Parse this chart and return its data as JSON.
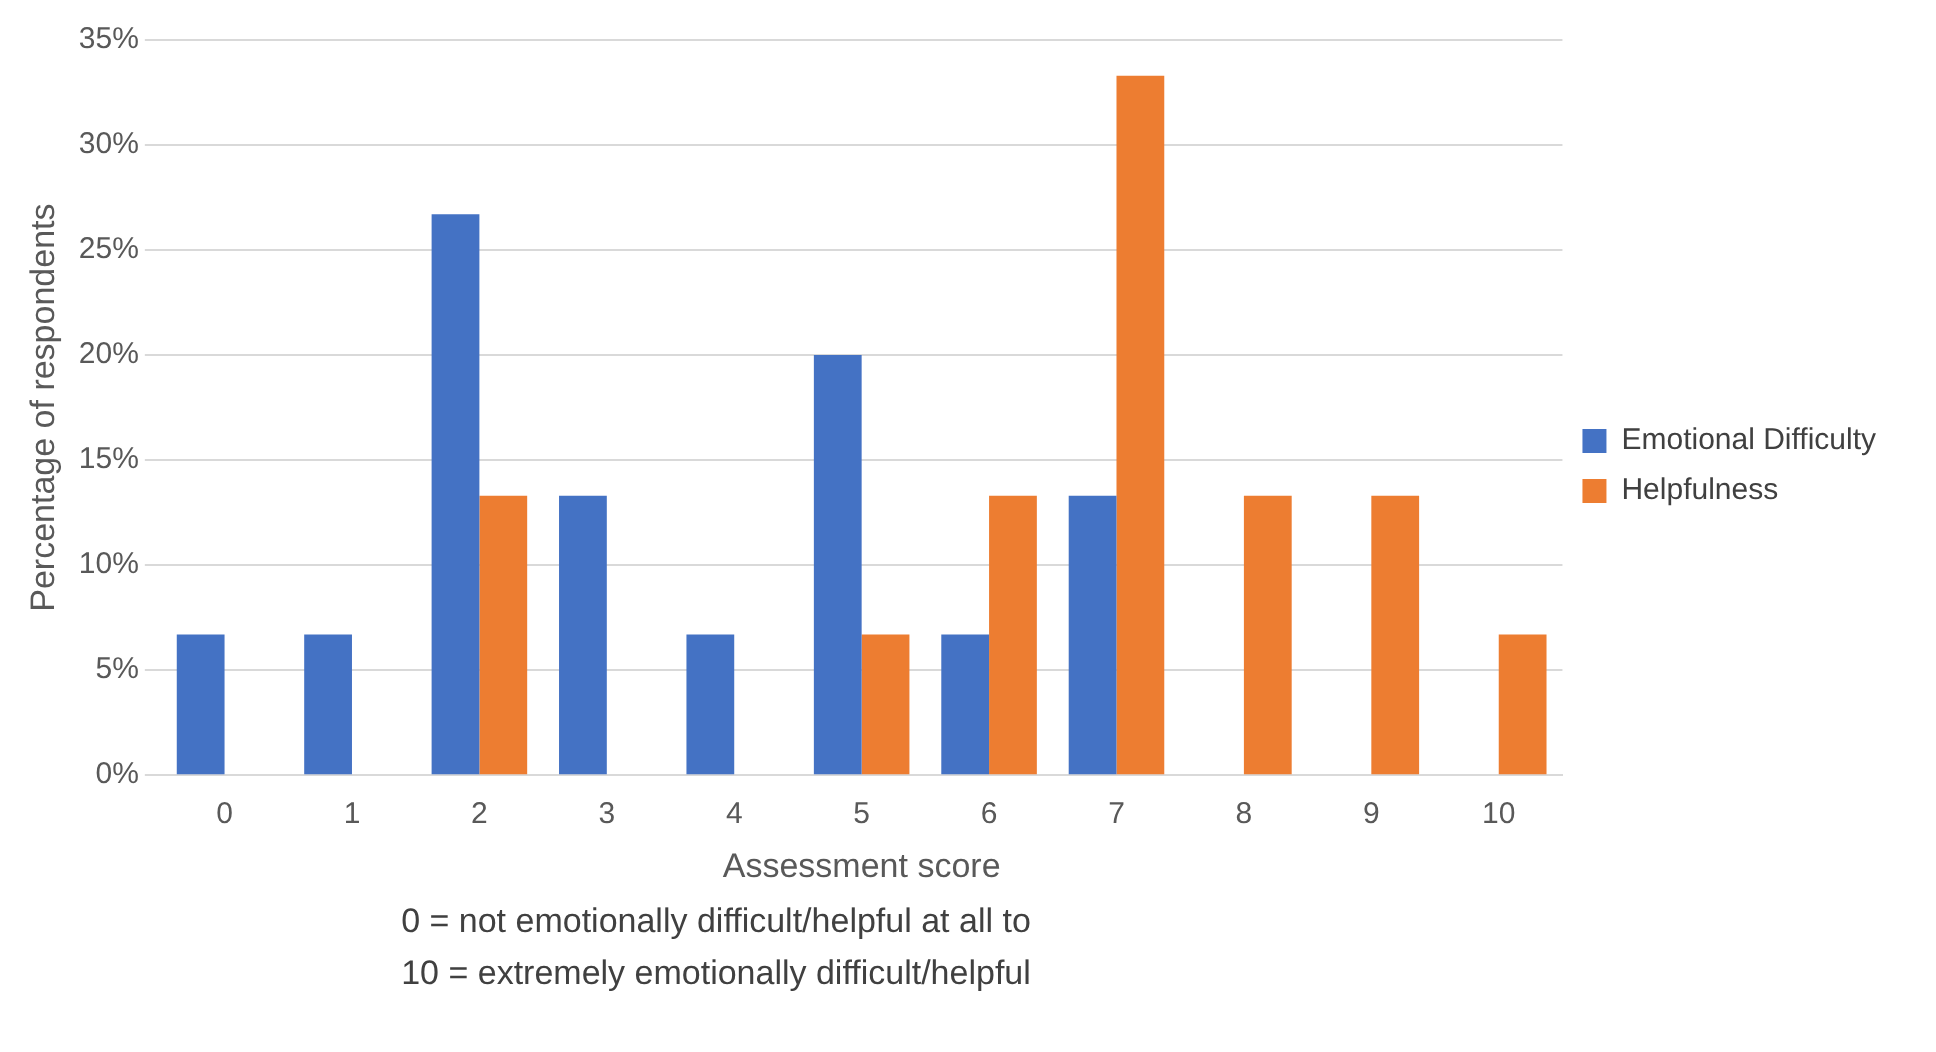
{
  "chart_data": {
    "type": "bar",
    "xlabel": "Assessment score",
    "ylabel": "Percentage of respondents",
    "categories": [
      "0",
      "1",
      "2",
      "3",
      "4",
      "5",
      "6",
      "7",
      "8",
      "9",
      "10"
    ],
    "series": [
      {
        "name": "Emotional Difficulty",
        "color": "#4472c4",
        "values": [
          6.7,
          6.7,
          26.7,
          13.3,
          6.7,
          20,
          6.7,
          13.3,
          0,
          0,
          0
        ]
      },
      {
        "name": "Helpfulness",
        "color": "#ed7d31",
        "values": [
          0,
          0,
          13.3,
          0,
          0,
          6.7,
          13.3,
          33.3,
          13.3,
          13.3,
          6.7
        ]
      }
    ],
    "ylim": [
      0,
      35
    ],
    "yticks": [
      {
        "value": 0,
        "label": "0%"
      },
      {
        "value": 5,
        "label": "5%"
      },
      {
        "value": 10,
        "label": "10%"
      },
      {
        "value": 15,
        "label": "15%"
      },
      {
        "value": 20,
        "label": "20%"
      },
      {
        "value": 25,
        "label": "25%"
      },
      {
        "value": 30,
        "label": "30%"
      },
      {
        "value": 35,
        "label": "35%"
      }
    ],
    "grid": "y",
    "legend": "right",
    "annotations": [
      "0 = not emotionally difficult/helpful at all to",
      "10 = extremely emotionally difficult/helpful"
    ]
  }
}
